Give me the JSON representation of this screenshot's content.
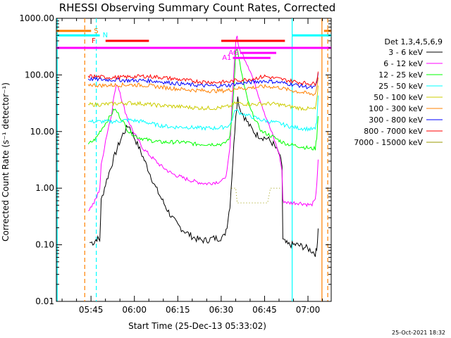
{
  "chart_data": {
    "type": "line",
    "title": "RHESSI Observing Summary Count Rates, Corrected",
    "xlabel": "Start Time (25-Dec-13 05:33:02)",
    "ylabel": "Corrected Count Rate (s⁻¹ detector⁻¹)",
    "y_scale": "log",
    "ylim": [
      0.01,
      1000
    ],
    "xlim_minutes": [
      0,
      95
    ],
    "x_tick_labels": [
      "05:45",
      "06:00",
      "06:15",
      "06:30",
      "06:45",
      "07:00"
    ],
    "x_tick_minutes": [
      11.97,
      26.97,
      41.97,
      56.97,
      71.97,
      86.97
    ],
    "y_tick_labels": [
      "0.01",
      "0.10",
      "1.00",
      "10.00",
      "100.00",
      "1000.00"
    ],
    "y_tick_values": [
      0.01,
      0.1,
      1,
      10,
      100,
      1000
    ],
    "legend_title": "Det 1,3,4,5,6,9",
    "timestamp": "25-Oct-2021 18:32",
    "series": [
      {
        "name": "3 - 6 keV",
        "color": "#000000",
        "points": [
          [
            11.5,
            0.11
          ],
          [
            13,
            0.11
          ],
          [
            14,
            0.13
          ],
          [
            15,
            0.12
          ],
          [
            15.5,
            0.6
          ],
          [
            17,
            1.2
          ],
          [
            19,
            2.5
          ],
          [
            21,
            5
          ],
          [
            23,
            9
          ],
          [
            25,
            13
          ],
          [
            26,
            10
          ],
          [
            28,
            6
          ],
          [
            30,
            3.5
          ],
          [
            32,
            2
          ],
          [
            34,
            1.1
          ],
          [
            36,
            0.7
          ],
          [
            38,
            0.45
          ],
          [
            40,
            0.3
          ],
          [
            42,
            0.22
          ],
          [
            44,
            0.18
          ],
          [
            46,
            0.15
          ],
          [
            48,
            0.13
          ],
          [
            50,
            0.12
          ],
          [
            52,
            0.12
          ],
          [
            54,
            0.13
          ],
          [
            56,
            0.13
          ],
          [
            58,
            0.14
          ],
          [
            59,
            0.22
          ],
          [
            60,
            0.5
          ],
          [
            61,
            3
          ],
          [
            62,
            20
          ],
          [
            62.7,
            40
          ],
          [
            63.5,
            25
          ],
          [
            65,
            18
          ],
          [
            67,
            12
          ],
          [
            69,
            9
          ],
          [
            71,
            8
          ],
          [
            73,
            7.5
          ],
          [
            75,
            6
          ],
          [
            77,
            4
          ],
          [
            78,
            2.5
          ],
          [
            78.3,
            0.12
          ],
          [
            80,
            0.1
          ],
          [
            83,
            0.1
          ],
          [
            86,
            0.09
          ],
          [
            88,
            0.08
          ],
          [
            89.5,
            0.07
          ],
          [
            90,
            0.08
          ],
          [
            90.5,
            0.2
          ]
        ]
      },
      {
        "name": "6 - 12 keV",
        "color": "#ff00ff",
        "points": [
          [
            11,
            0.4
          ],
          [
            13,
            0.55
          ],
          [
            14,
            0.7
          ],
          [
            15,
            1
          ],
          [
            15.5,
            2.5
          ],
          [
            17,
            7
          ],
          [
            19,
            20
          ],
          [
            20,
            45
          ],
          [
            21,
            70
          ],
          [
            22,
            50
          ],
          [
            23,
            30
          ],
          [
            25,
            15
          ],
          [
            27,
            9
          ],
          [
            30,
            5
          ],
          [
            33,
            3.5
          ],
          [
            36,
            2.5
          ],
          [
            40,
            1.8
          ],
          [
            44,
            1.5
          ],
          [
            48,
            1.3
          ],
          [
            52,
            1.2
          ],
          [
            56,
            1.3
          ],
          [
            58,
            1.4
          ],
          [
            59,
            2
          ],
          [
            60,
            5
          ],
          [
            61,
            60
          ],
          [
            62,
            400
          ],
          [
            62.5,
            500
          ],
          [
            63,
            300
          ],
          [
            65,
            200
          ],
          [
            67,
            120
          ],
          [
            69,
            60
          ],
          [
            71,
            30
          ],
          [
            73,
            15
          ],
          [
            75,
            8
          ],
          [
            77,
            4
          ],
          [
            78,
            2
          ],
          [
            78.3,
            0.6
          ],
          [
            80,
            0.55
          ],
          [
            84,
            0.55
          ],
          [
            88,
            0.5
          ],
          [
            89.5,
            0.6
          ],
          [
            90,
            1.2
          ],
          [
            90.5,
            3
          ]
        ]
      },
      {
        "name": "12 - 25 keV",
        "color": "#00ff00",
        "points": [
          [
            11,
            6
          ],
          [
            13,
            7
          ],
          [
            14,
            8
          ],
          [
            15,
            10
          ],
          [
            17,
            14
          ],
          [
            19,
            20
          ],
          [
            20,
            25
          ],
          [
            21,
            22
          ],
          [
            23,
            15
          ],
          [
            25,
            10
          ],
          [
            28,
            8
          ],
          [
            32,
            7
          ],
          [
            36,
            6.5
          ],
          [
            40,
            6.5
          ],
          [
            44,
            6.5
          ],
          [
            48,
            6
          ],
          [
            52,
            6
          ],
          [
            56,
            6
          ],
          [
            58,
            6
          ],
          [
            60,
            8
          ],
          [
            61,
            30
          ],
          [
            62,
            250
          ],
          [
            62.5,
            300
          ],
          [
            63,
            200
          ],
          [
            65,
            60
          ],
          [
            67,
            25
          ],
          [
            69,
            15
          ],
          [
            71,
            10
          ],
          [
            73,
            9
          ],
          [
            75,
            8
          ],
          [
            77,
            7
          ],
          [
            78,
            6.5
          ],
          [
            80,
            6
          ],
          [
            84,
            5.5
          ],
          [
            88,
            5
          ],
          [
            89.5,
            5
          ],
          [
            90,
            8
          ],
          [
            90.5,
            20
          ]
        ]
      },
      {
        "name": "25 - 50 keV",
        "color": "#00ffff",
        "points": [
          [
            11,
            15
          ],
          [
            15,
            15
          ],
          [
            20,
            15
          ],
          [
            25,
            16
          ],
          [
            30,
            15
          ],
          [
            35,
            13
          ],
          [
            40,
            12
          ],
          [
            45,
            12
          ],
          [
            50,
            11.5
          ],
          [
            55,
            11.5
          ],
          [
            58,
            12
          ],
          [
            60,
            13
          ],
          [
            62,
            25
          ],
          [
            63,
            22
          ],
          [
            65,
            20
          ],
          [
            68,
            18
          ],
          [
            71,
            16
          ],
          [
            74,
            15
          ],
          [
            77,
            14
          ],
          [
            80,
            12.5
          ],
          [
            84,
            11.5
          ],
          [
            88,
            11
          ],
          [
            89.5,
            11
          ],
          [
            90,
            15
          ],
          [
            90.5,
            40
          ]
        ]
      },
      {
        "name": "50 - 100 keV",
        "color": "#cccc00",
        "points": [
          [
            11,
            30
          ],
          [
            15,
            30
          ],
          [
            20,
            31
          ],
          [
            25,
            32
          ],
          [
            30,
            31
          ],
          [
            35,
            29
          ],
          [
            40,
            28
          ],
          [
            45,
            27
          ],
          [
            50,
            26
          ],
          [
            55,
            26
          ],
          [
            58,
            27
          ],
          [
            60,
            28
          ],
          [
            62,
            32
          ],
          [
            65,
            31
          ],
          [
            68,
            30
          ],
          [
            71,
            31
          ],
          [
            74,
            31
          ],
          [
            77,
            30
          ],
          [
            80,
            28
          ],
          [
            84,
            26
          ],
          [
            88,
            25
          ],
          [
            89.5,
            25
          ],
          [
            90,
            35
          ],
          [
            90.5,
            60
          ]
        ]
      },
      {
        "name": "100 - 300 keV",
        "color": "#ff8000",
        "points": [
          [
            11,
            68
          ],
          [
            15,
            65
          ],
          [
            20,
            66
          ],
          [
            25,
            67
          ],
          [
            30,
            66
          ],
          [
            35,
            62
          ],
          [
            40,
            58
          ],
          [
            45,
            55
          ],
          [
            50,
            53
          ],
          [
            55,
            52
          ],
          [
            58,
            53
          ],
          [
            60,
            54
          ],
          [
            62,
            58
          ],
          [
            65,
            58
          ],
          [
            68,
            60
          ],
          [
            71,
            62
          ],
          [
            74,
            62
          ],
          [
            77,
            60
          ],
          [
            80,
            55
          ],
          [
            84,
            50
          ],
          [
            88,
            46
          ],
          [
            89.5,
            46
          ],
          [
            90,
            60
          ],
          [
            90.5,
            90
          ]
        ]
      },
      {
        "name": "300 - 800 keV",
        "color": "#0000ff",
        "points": [
          [
            11,
            85
          ],
          [
            15,
            83
          ],
          [
            20,
            82
          ],
          [
            25,
            80
          ],
          [
            30,
            80
          ],
          [
            35,
            77
          ],
          [
            40,
            72
          ],
          [
            45,
            68
          ],
          [
            50,
            65
          ],
          [
            55,
            64
          ],
          [
            58,
            65
          ],
          [
            60,
            66
          ],
          [
            62,
            70
          ],
          [
            65,
            72
          ],
          [
            68,
            75
          ],
          [
            71,
            78
          ],
          [
            74,
            77
          ],
          [
            77,
            74
          ],
          [
            80,
            70
          ],
          [
            84,
            65
          ],
          [
            88,
            60
          ],
          [
            89.5,
            60
          ],
          [
            90,
            75
          ],
          [
            90.5,
            100
          ]
        ]
      },
      {
        "name": "800 - 7000 keV",
        "color": "#ff0000",
        "points": [
          [
            11,
            96
          ],
          [
            15,
            92
          ],
          [
            20,
            90
          ],
          [
            25,
            92
          ],
          [
            30,
            95
          ],
          [
            35,
            92
          ],
          [
            40,
            86
          ],
          [
            45,
            80
          ],
          [
            50,
            76
          ],
          [
            55,
            74
          ],
          [
            58,
            75
          ],
          [
            60,
            76
          ],
          [
            62,
            80
          ],
          [
            65,
            82
          ],
          [
            68,
            86
          ],
          [
            71,
            92
          ],
          [
            72,
            95
          ],
          [
            74,
            90
          ],
          [
            77,
            85
          ],
          [
            80,
            80
          ],
          [
            84,
            74
          ],
          [
            88,
            70
          ],
          [
            89.5,
            70
          ],
          [
            90,
            85
          ],
          [
            90.5,
            110
          ]
        ]
      },
      {
        "name": "7000 - 15000 keV",
        "color": "#999900",
        "points": [
          [
            60.5,
            1.0
          ],
          [
            61,
            1.0
          ],
          [
            62,
            1.0
          ],
          [
            62.5,
            0.55
          ],
          [
            63,
            0.55
          ],
          [
            64,
            0.55
          ],
          [
            65,
            0.55
          ],
          [
            66,
            0.55
          ],
          [
            67,
            0.55
          ],
          [
            68,
            0.55
          ],
          [
            69,
            0.55
          ],
          [
            70,
            0.55
          ],
          [
            71,
            0.55
          ],
          [
            72,
            0.55
          ],
          [
            73,
            0.55
          ],
          [
            74,
            1.0
          ],
          [
            75,
            1.0
          ],
          [
            76,
            1.0
          ],
          [
            77,
            1.0
          ],
          [
            78,
            1.0
          ]
        ]
      }
    ],
    "flags": [
      {
        "label": "S",
        "color": "#ff8000",
        "y": 600,
        "spans": [
          [
            0,
            12
          ],
          [
            92.5,
            95
          ]
        ]
      },
      {
        "label": "N",
        "color": "#00ffff",
        "y": 500,
        "spans": [
          [
            0,
            15
          ],
          [
            81.5,
            95
          ]
        ]
      },
      {
        "label": "F",
        "color": "#ff0000",
        "y": 400,
        "spans": [
          [
            17,
            32
          ],
          [
            57,
            79
          ]
        ]
      },
      {
        "label": "",
        "color": "#ff00ff",
        "y": 300,
        "spans": [
          [
            0,
            95
          ]
        ]
      },
      {
        "label": "AG",
        "color": "#ff00ff",
        "y": 245,
        "spans": [
          [
            63.5,
            76
          ]
        ]
      },
      {
        "label": "A1",
        "color": "#ff00ff",
        "y": 200,
        "spans": [
          [
            61,
            74
          ]
        ]
      }
    ],
    "vertical_markers": [
      {
        "minute": 9.8,
        "color": "#ff8000",
        "style": "dashed"
      },
      {
        "minute": 13.8,
        "color": "#00ffff",
        "style": "dashed"
      },
      {
        "minute": 93.8,
        "color": "#ff8000",
        "style": "dashed"
      },
      {
        "minute": 0.3,
        "color": "#00ffff",
        "style": "solid"
      },
      {
        "minute": 81.5,
        "color": "#00ffff",
        "style": "solid"
      },
      {
        "minute": 91.8,
        "color": "#ff8000",
        "style": "solid"
      }
    ]
  }
}
